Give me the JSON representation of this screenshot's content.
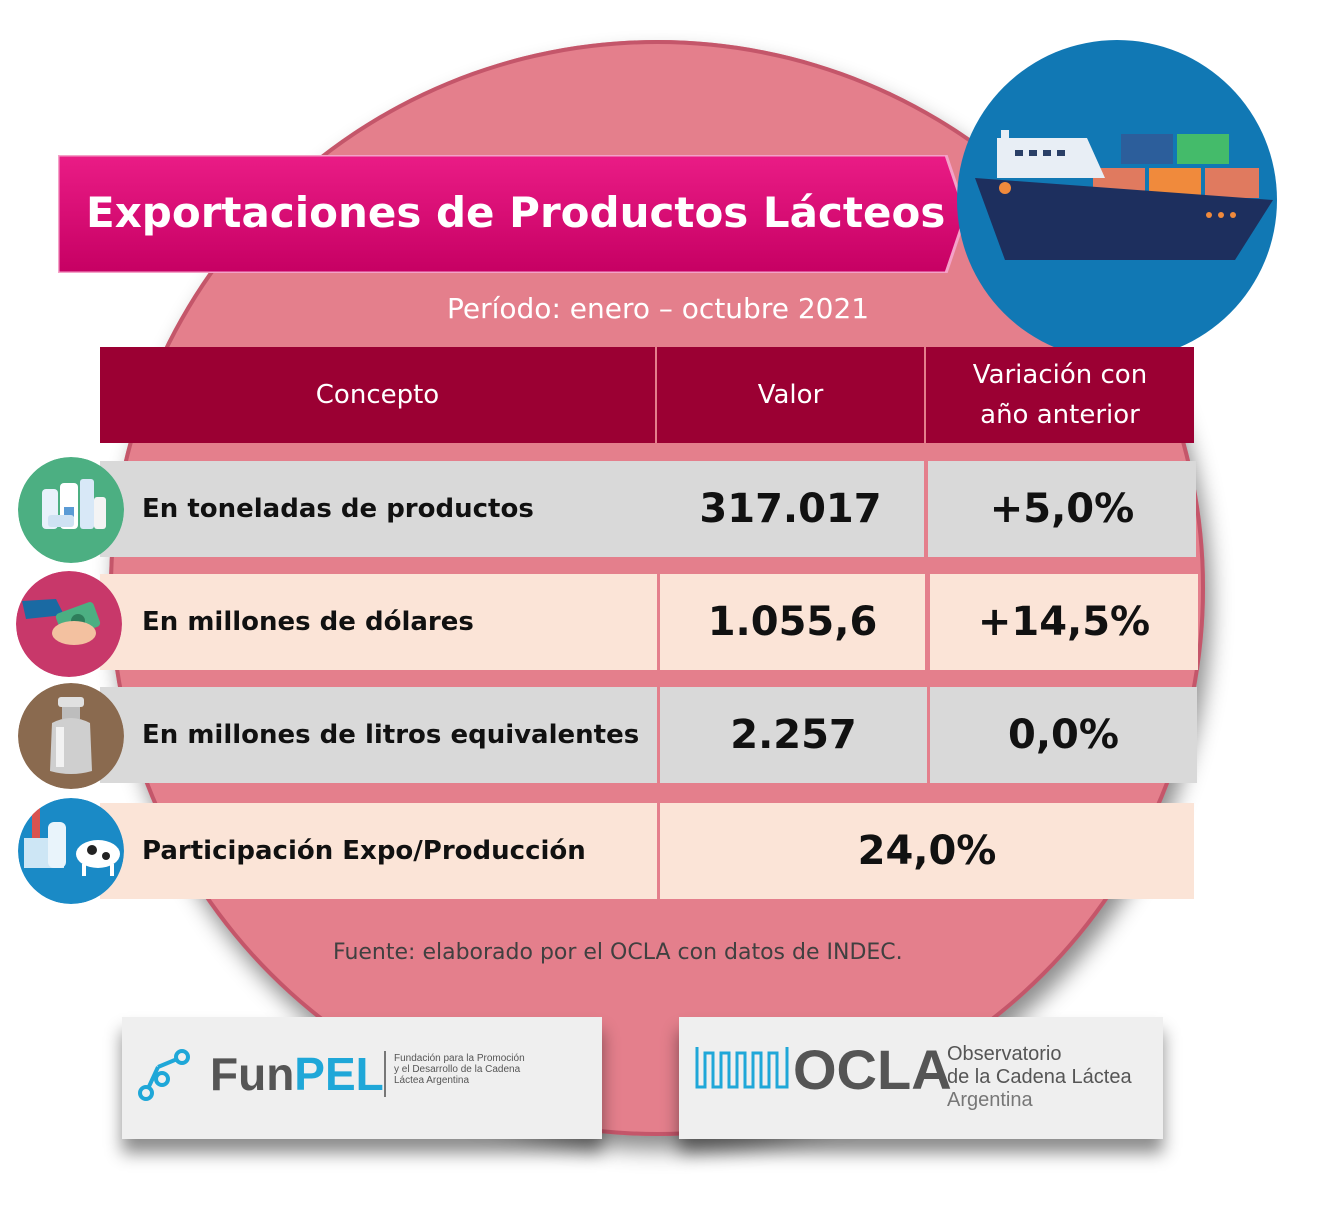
{
  "title": "Exportaciones de Productos Lácteos",
  "period": "Período: enero – octubre 2021",
  "table": {
    "headers": {
      "concept": "Concepto",
      "value": "Valor",
      "variation_line1": "Variación con",
      "variation_line2": "año anterior"
    },
    "rows": [
      {
        "concept": "En toneladas de productos",
        "value": "317.017",
        "variation": "+5,0%",
        "icon": "dairy-products-icon"
      },
      {
        "concept": "En millones de dólares",
        "value": "1.055,6",
        "variation": "+14,5%",
        "icon": "money-hand-icon"
      },
      {
        "concept": "En millones de litros equivalentes",
        "value": "2.257",
        "variation": "0,0%",
        "icon": "milk-can-icon"
      },
      {
        "concept": "Participación Expo/Producción",
        "value": "24,0%",
        "icon": "factory-cow-icon"
      }
    ]
  },
  "source": "Fuente: elaborado por el OCLA con datos de INDEC.",
  "logos": {
    "funpel": {
      "name_part1": "Fun",
      "name_part2": "PEL",
      "desc_line1": "Fundación para la Promoción",
      "desc_line2": "y el Desarrollo de la Cadena",
      "desc_line3": "Láctea Argentina"
    },
    "ocla": {
      "name": "OCLA",
      "line1": "Observatorio",
      "line2": "de la Cadena Láctea",
      "line3": "Argentina"
    }
  },
  "colors": {
    "circle": "#e47f8c",
    "banner": "#d6006e",
    "header": "#9b0033",
    "grey_row": "#d9d9d9",
    "peach_row": "#fbe4d7",
    "ship_badge": "#1178b4"
  }
}
